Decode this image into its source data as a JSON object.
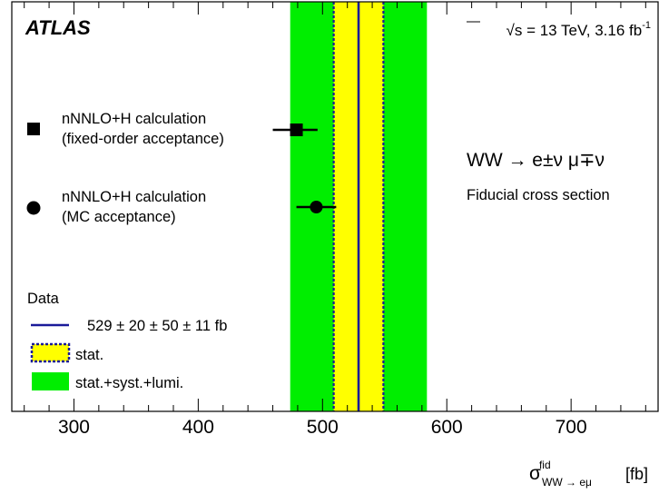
{
  "chart_data": {
    "type": "scatter",
    "experiment": "ATLAS",
    "energy_label": "√s = 13 TeV, 3.16 fb",
    "energy_superscript": "-1",
    "process_label": "WW → e±ν μ∓ν",
    "subtitle": "Fiducial cross section",
    "xlabel_main": "σ",
    "xlabel_sup": "fid",
    "xlabel_sub": "WW → eμ",
    "xlabel_unit": "[fb]",
    "xlim": [
      250,
      770
    ],
    "x_major_ticks": [
      300,
      400,
      500,
      600,
      700
    ],
    "x_tick_labels": [
      "300",
      "400",
      "500",
      "600",
      "700"
    ],
    "grid": false,
    "measurement": {
      "central": 529,
      "stat": 20,
      "syst": 50,
      "lumi": 11,
      "stat_band": [
        509,
        549
      ],
      "total_band": [
        474,
        584
      ],
      "colors": {
        "line": "#1a1a99",
        "stat": "#ffff00",
        "stat_border": "#1a1a99",
        "total": "#00ee00"
      }
    },
    "predictions": [
      {
        "name": "nNNLO+H calculation",
        "detail": "(fixed-order acceptance)",
        "marker": "square",
        "value": 479,
        "err_low": 19,
        "err_high": 17
      },
      {
        "name": "nNNLO+H calculation",
        "detail": "(MC acceptance)",
        "marker": "circle",
        "value": 495,
        "err_low": 16,
        "err_high": 16
      }
    ],
    "legend": {
      "title": "Data",
      "entries": [
        "529 ± 20 ± 50 ± 11 fb",
        "stat.",
        "stat.+syst.+lumi."
      ]
    }
  }
}
